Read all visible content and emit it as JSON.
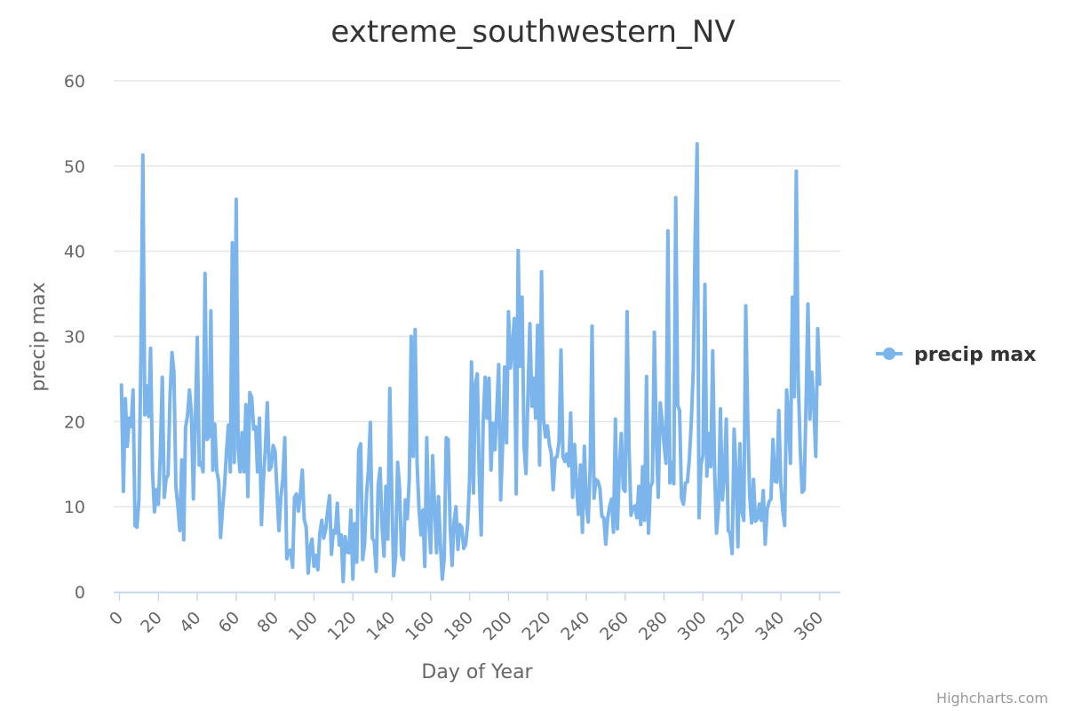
{
  "chart_data": {
    "type": "line",
    "title": "extreme_southwestern_NV",
    "xlabel": "Day of Year",
    "ylabel": "precip max",
    "xlim": [
      0,
      366
    ],
    "ylim": [
      0,
      60
    ],
    "x_ticks": [
      0,
      20,
      40,
      60,
      80,
      100,
      120,
      140,
      160,
      180,
      200,
      220,
      240,
      260,
      280,
      300,
      320,
      340,
      360
    ],
    "y_ticks": [
      0,
      10,
      20,
      30,
      40,
      50,
      60
    ],
    "grid": "horizontal",
    "legend_position": "right",
    "series": [
      {
        "name": "precip max",
        "color": "#7cb5ec",
        "x_start": 1,
        "x_step": 1,
        "values": [
          24.3,
          11.8,
          22.7,
          17.1,
          20.4,
          19.4,
          23.7,
          7.8,
          7.6,
          10.9,
          27.4,
          51.3,
          20.8,
          24.2,
          20.6,
          28.6,
          14.0,
          9.4,
          12.0,
          10.3,
          16.4,
          25.2,
          11.1,
          13.3,
          13.7,
          23.0,
          28.1,
          25.8,
          12.4,
          10.1,
          7.2,
          15.5,
          6.1,
          19.3,
          20.7,
          23.7,
          20.8,
          10.9,
          20.4,
          29.9,
          14.9,
          15.1,
          14.1,
          37.4,
          17.9,
          18.2,
          33.0,
          14.3,
          19.7,
          14.2,
          13.0,
          6.4,
          9.7,
          12.4,
          16.4,
          19.6,
          14.1,
          41.0,
          15.2,
          46.1,
          16.8,
          14.1,
          18.7,
          14.1,
          22.0,
          11.2,
          23.4,
          22.8,
          19.1,
          19.4,
          14.1,
          20.4,
          7.9,
          13.2,
          16.8,
          22.2,
          14.3,
          14.7,
          17.2,
          16.5,
          11.8,
          7.2,
          11.2,
          13.3,
          18.1,
          3.9,
          4.8,
          4.9,
          2.9,
          11.1,
          11.5,
          9.5,
          11.5,
          14.3,
          8.5,
          7.6,
          2.2,
          5.2,
          6.2,
          3.0,
          4.3,
          2.6,
          6.8,
          8.4,
          6.3,
          7.3,
          9.5,
          11.3,
          4.4,
          7.2,
          6.9,
          10.4,
          5.5,
          6.7,
          1.2,
          6.5,
          4.7,
          4.6,
          9.6,
          1.5,
          8.0,
          3.5,
          16.7,
          17.4,
          3.8,
          5.6,
          11.4,
          14.3,
          19.9,
          6.3,
          5.9,
          2.4,
          12.5,
          14.5,
          7.6,
          4.2,
          12.4,
          6.2,
          23.9,
          11.6,
          1.9,
          4.2,
          15.2,
          12.2,
          4.4,
          3.8,
          10.8,
          8.6,
          13.2,
          30.0,
          15.9,
          30.8,
          15.1,
          9.7,
          6.7,
          9.6,
          3.0,
          18.1,
          8.5,
          4.6,
          16.0,
          10.1,
          4.6,
          11.2,
          5.5,
          1.5,
          4.0,
          18.1,
          17.9,
          7.9,
          3.1,
          8.2,
          10.0,
          5.0,
          7.9,
          7.6,
          5.1,
          5.6,
          7.9,
          13.2,
          27.0,
          11.6,
          24.5,
          25.6,
          13.4,
          6.7,
          19.8,
          25.2,
          20.4,
          25.1,
          14.3,
          19.8,
          16.7,
          21.2,
          26.7,
          10.8,
          17.3,
          26.4,
          17.5,
          32.9,
          26.3,
          28.8,
          32.1,
          11.5,
          40.1,
          26.5,
          34.6,
          17.2,
          13.9,
          23.1,
          31.5,
          21.8,
          25.1,
          20.4,
          31.3,
          14.9,
          37.6,
          20.3,
          18.2,
          19.5,
          17.3,
          16.3,
          12.0,
          15.7,
          15.9,
          17.6,
          28.4,
          15.9,
          15.3,
          16.2,
          14.8,
          21.0,
          11.1,
          17.3,
          12.5,
          9.1,
          14.9,
          7.0,
          17.1,
          10.2,
          8.2,
          14.5,
          31.2,
          11.0,
          13.2,
          13.0,
          12.2,
          8.9,
          8.7,
          5.6,
          8.6,
          10.0,
          10.9,
          7.0,
          20.3,
          7.4,
          14.4,
          18.6,
          12.1,
          11.8,
          32.9,
          17.0,
          9.0,
          9.9,
          10.1,
          8.7,
          12.4,
          7.9,
          14.7,
          8.4,
          25.3,
          6.9,
          12.3,
          12.9,
          30.5,
          17.8,
          11.1,
          22.2,
          20.2,
          17.4,
          15.1,
          42.4,
          12.8,
          15.2,
          12.7,
          46.3,
          21.9,
          21.3,
          11.0,
          10.3,
          12.8,
          12.9,
          15.6,
          19.9,
          26.0,
          41.9,
          52.6,
          8.7,
          15.0,
          16.0,
          36.1,
          13.6,
          18.6,
          14.7,
          28.3,
          14.1,
          6.9,
          9.9,
          21.5,
          10.8,
          13.7,
          20.3,
          7.2,
          6.9,
          4.5,
          19.1,
          13.9,
          5.3,
          17.4,
          9.5,
          8.4,
          33.6,
          20.4,
          11.3,
          8.1,
          13.2,
          8.3,
          8.6,
          10.3,
          8.4,
          11.9,
          5.6,
          9.7,
          10.6,
          10.9,
          17.9,
          13.0,
          12.9,
          21.3,
          12.8,
          9.6,
          7.8,
          23.7,
          20.2,
          15.1,
          34.6,
          22.9,
          49.4,
          24.8,
          16.9,
          11.7,
          12.0,
          22.3,
          33.8,
          20.3,
          25.8,
          21.9,
          15.9,
          30.9,
          24.4
        ]
      }
    ],
    "credits": "Highcharts.com"
  }
}
